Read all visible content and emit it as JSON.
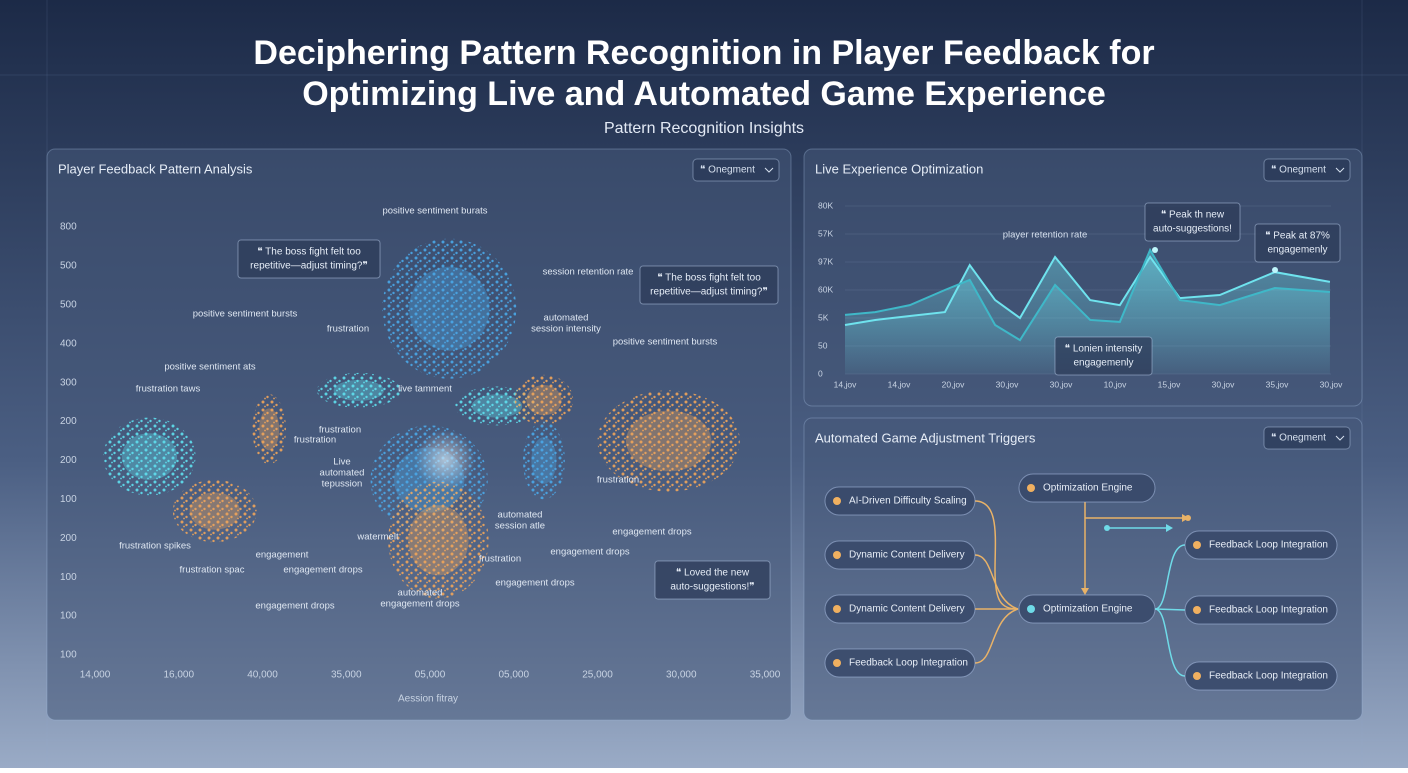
{
  "header": {
    "title_line1": "Deciphering Pattern Recognition in Player Feedback for",
    "title_line2": "Optimizing Live and Automated Game Experience",
    "subtitle": "Pattern Recognition Insights"
  },
  "scatter_panel": {
    "title": "Player Feedback Pattern Analysis",
    "dropdown": "❝ Onegment",
    "chart_data": {
      "type": "scatter",
      "x_label": "Aession fitray",
      "xlim": [
        0,
        8
      ],
      "ylim": [
        0,
        11
      ],
      "xticks": [
        {
          "value": 0,
          "label": "14,000"
        },
        {
          "value": 1,
          "label": "16,000"
        },
        {
          "value": 2,
          "label": "40,000"
        },
        {
          "value": 3,
          "label": "35,000"
        },
        {
          "value": 4,
          "label": "05,000"
        },
        {
          "value": 5,
          "label": "05,000"
        },
        {
          "value": 6,
          "label": "25,000"
        },
        {
          "value": 7,
          "label": "30,000"
        },
        {
          "value": 8,
          "label": "35,000"
        }
      ],
      "yticks": [
        {
          "value": 0,
          "label": "100"
        },
        {
          "value": 1,
          "label": "100"
        },
        {
          "value": 2,
          "label": "100"
        },
        {
          "value": 3,
          "label": "200"
        },
        {
          "value": 4,
          "label": "100"
        },
        {
          "value": 5,
          "label": "200"
        },
        {
          "value": 6,
          "label": "200"
        },
        {
          "value": 7,
          "label": "300"
        },
        {
          "value": 8,
          "label": "400"
        },
        {
          "value": 9,
          "label": "500"
        },
        {
          "value": 10,
          "label": "500"
        },
        {
          "value": 11,
          "label": "800"
        }
      ],
      "clusters": [
        {
          "color": "#5fe0ef",
          "x": 0.65,
          "y": 5.1,
          "spread_x": 0.55,
          "spread_y": 1.0
        },
        {
          "color": "#f0a55a",
          "x": 1.43,
          "y": 3.7,
          "spread_x": 0.5,
          "spread_y": 0.8
        },
        {
          "color": "#f0a55a",
          "x": 2.08,
          "y": 5.8,
          "spread_x": 0.2,
          "spread_y": 0.9
        },
        {
          "color": "#5fe0ef",
          "x": 3.15,
          "y": 6.8,
          "spread_x": 0.5,
          "spread_y": 0.45
        },
        {
          "color": "#4aa8e8",
          "x": 4.23,
          "y": 8.9,
          "spread_x": 0.8,
          "spread_y": 1.8
        },
        {
          "color": "#4aa8e8",
          "x": 3.99,
          "y": 4.5,
          "spread_x": 0.7,
          "spread_y": 1.4
        },
        {
          "color": "#f0a55a",
          "x": 4.1,
          "y": 2.95,
          "spread_x": 0.6,
          "spread_y": 1.5
        },
        {
          "color": "#5fe0ef",
          "x": 4.8,
          "y": 6.4,
          "spread_x": 0.5,
          "spread_y": 0.5
        },
        {
          "color": "#f0a55a",
          "x": 5.36,
          "y": 6.55,
          "spread_x": 0.35,
          "spread_y": 0.65
        },
        {
          "color": "#4aa8e8",
          "x": 5.36,
          "y": 5.0,
          "spread_x": 0.25,
          "spread_y": 1.0
        },
        {
          "color": "#f0a55a",
          "x": 6.85,
          "y": 5.5,
          "spread_x": 0.85,
          "spread_y": 1.3
        }
      ],
      "annotations": [
        [
          "positive sentiment burats"
        ],
        [
          "session retention rate"
        ],
        [
          "positive sentiment bursts"
        ],
        [
          "frustration"
        ],
        [
          "automated",
          "session intensity"
        ],
        [
          "positive sentiment bursts"
        ],
        [
          "positive sentiment ats"
        ],
        [
          "frustration taws"
        ],
        [
          "live tamment"
        ],
        [
          "frustration"
        ],
        [
          "frustration"
        ],
        [
          "Live",
          "automated",
          "tepussion"
        ],
        [
          "frustration"
        ],
        [
          "frustration spikes"
        ],
        [
          "engagement"
        ],
        [
          "frustration spac"
        ],
        [
          "engagement drops"
        ],
        [
          "automated",
          "session atle"
        ],
        [
          "watermelt"
        ],
        [
          "frustration"
        ],
        [
          "engagement drops"
        ],
        [
          "engagement drops"
        ],
        [
          "engagement drops"
        ],
        [
          "engagement drops"
        ],
        [
          "automated",
          "engagement drops"
        ]
      ],
      "quotes": [
        [
          "❝ The boss fight felt too",
          "repetitive—adjust timing?❞"
        ],
        [
          "❝ The boss fight felt too",
          "repetitive—adjust timing?❞"
        ],
        [
          "❝ Loved the new",
          "auto-suggestions!❞"
        ]
      ]
    }
  },
  "line_panel": {
    "title": "Live Experience Optimization",
    "dropdown": "❝ Onegment",
    "chart_data": {
      "type": "line",
      "xlim": [
        0,
        9
      ],
      "ylim": [
        0,
        6
      ],
      "xticks": [
        {
          "value": 0,
          "label": "14,jov"
        },
        {
          "value": 1,
          "label": "14,jov"
        },
        {
          "value": 2,
          "label": "20,jov"
        },
        {
          "value": 3,
          "label": "30,jov"
        },
        {
          "value": 4,
          "label": "30,jov"
        },
        {
          "value": 5,
          "label": "10,jov"
        },
        {
          "value": 6,
          "label": "15,jov"
        },
        {
          "value": 7,
          "label": "30,jov"
        },
        {
          "value": 8,
          "label": "35,jov"
        },
        {
          "value": 9,
          "label": "30,jov"
        }
      ],
      "yticks": [
        0,
        {
          "value": 1,
          "label": "50"
        },
        {
          "value": 2,
          "label": "5K"
        },
        {
          "value": 3,
          "label": "60K"
        },
        {
          "value": 4,
          "label": "97K"
        },
        {
          "value": 5,
          "label": "57K"
        },
        {
          "value": 6,
          "label": "80K"
        }
      ],
      "x": [
        0,
        0.56,
        1.2,
        1.85,
        2.31,
        2.78,
        3.24,
        3.89,
        4.54,
        5.09,
        5.65,
        6.2,
        6.94,
        7.96,
        8.98
      ],
      "series": [
        {
          "color": "#6fe3ee",
          "values": [
            1.75,
            1.93,
            2.07,
            2.21,
            3.89,
            2.64,
            2.0,
            4.18,
            2.64,
            2.46,
            4.18,
            2.71,
            2.82,
            3.64,
            3.29
          ]
        },
        {
          "color": "#3fb8c8",
          "values": [
            2.11,
            2.21,
            2.46,
            3.0,
            3.36,
            1.75,
            1.21,
            3.18,
            1.93,
            1.86,
            4.43,
            2.64,
            2.46,
            3.07,
            2.93
          ]
        }
      ],
      "annotations": [
        [
          "player retention rate"
        ]
      ],
      "quotes": [
        [
          "❝ Peak th new",
          "auto-suggestions!"
        ],
        [
          "❝ Peak at 87%",
          "engagemenly"
        ],
        [
          "❝ Lonien intensity",
          "engagemenly"
        ]
      ]
    }
  },
  "flow_panel": {
    "title": "Automated Game Adjustment Triggers",
    "dropdown": "❝ Onegment",
    "nodes": [
      "AI-Driven Difficulty Scaling",
      "Dynamic Content Delivery",
      "Dynamic Content Delivery",
      "Feedback Loop Integration",
      "Optimization Engine",
      "Optimization Engine",
      "Feedback Loop Integration",
      "Feedback Loop Integration",
      "Feedback Loop Integration"
    ]
  }
}
